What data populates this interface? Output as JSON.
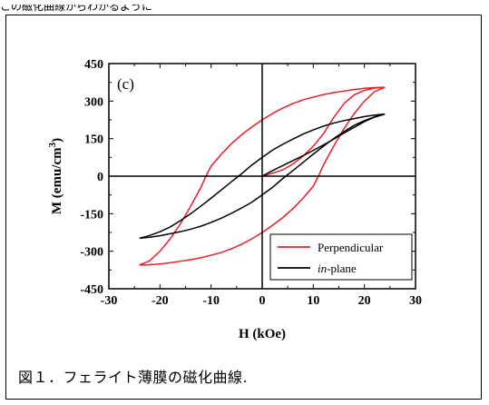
{
  "top_text": "この磁化曲線からわかるように",
  "caption": "図１．フェライト薄膜の磁化曲線.",
  "chart_data": {
    "type": "line",
    "panel_label": "(c)",
    "xlabel": "H (kOe)",
    "ylabel_main": "M (emu/cm",
    "ylabel_sup": "3",
    "ylabel_close": ")",
    "xlim": [
      -30,
      30
    ],
    "ylim": [
      -450,
      450
    ],
    "x_ticks": [
      -30,
      -20,
      -10,
      0,
      10,
      20,
      30
    ],
    "y_ticks": [
      -450,
      -300,
      -150,
      0,
      150,
      300,
      450
    ],
    "x_tick_labels": [
      "-30",
      "-20",
      "-10",
      "0",
      "10",
      "20",
      "30"
    ],
    "y_tick_labels": [
      "-450",
      "-300",
      "-150",
      "0",
      "150",
      "300",
      "450"
    ],
    "legend_position": "bottom-right",
    "series": [
      {
        "name": "Perpendicular",
        "color": "#ee1c25",
        "italic_prefix": "",
        "label_rest": "Perpendicular",
        "points": [
          [
            0,
            0
          ],
          [
            2,
            12
          ],
          [
            4,
            25
          ],
          [
            6,
            48
          ],
          [
            8,
            80
          ],
          [
            10,
            120
          ],
          [
            12,
            170
          ],
          [
            14,
            235
          ],
          [
            16,
            290
          ],
          [
            18,
            325
          ],
          [
            20,
            343
          ],
          [
            22,
            352
          ],
          [
            24,
            355
          ],
          [
            22,
            354
          ],
          [
            20,
            351
          ],
          [
            18,
            346
          ],
          [
            16,
            340
          ],
          [
            14,
            334
          ],
          [
            12,
            326
          ],
          [
            10,
            316
          ],
          [
            8,
            305
          ],
          [
            6,
            290
          ],
          [
            4,
            272
          ],
          [
            2,
            250
          ],
          [
            0,
            225
          ],
          [
            -2,
            197
          ],
          [
            -4,
            166
          ],
          [
            -6,
            130
          ],
          [
            -8,
            88
          ],
          [
            -10,
            40
          ],
          [
            -11,
            0
          ],
          [
            -12,
            -45
          ],
          [
            -14,
            -120
          ],
          [
            -16,
            -190
          ],
          [
            -18,
            -250
          ],
          [
            -20,
            -300
          ],
          [
            -22,
            -338
          ],
          [
            -24,
            -355
          ],
          [
            -22,
            -354
          ],
          [
            -20,
            -351
          ],
          [
            -18,
            -346
          ],
          [
            -16,
            -340
          ],
          [
            -14,
            -334
          ],
          [
            -12,
            -326
          ],
          [
            -10,
            -316
          ],
          [
            -8,
            -305
          ],
          [
            -6,
            -290
          ],
          [
            -4,
            -272
          ],
          [
            -2,
            -250
          ],
          [
            0,
            -225
          ],
          [
            2,
            -197
          ],
          [
            4,
            -166
          ],
          [
            6,
            -130
          ],
          [
            8,
            -88
          ],
          [
            10,
            -40
          ],
          [
            11,
            0
          ],
          [
            12,
            45
          ],
          [
            14,
            120
          ],
          [
            16,
            190
          ],
          [
            18,
            250
          ],
          [
            20,
            300
          ],
          [
            22,
            338
          ],
          [
            24,
            355
          ]
        ]
      },
      {
        "name": "in-plane",
        "color": "#000000",
        "italic_prefix": "in",
        "label_rest": "-plane",
        "points": [
          [
            0,
            0
          ],
          [
            2,
            22
          ],
          [
            4,
            42
          ],
          [
            6,
            62
          ],
          [
            8,
            82
          ],
          [
            10,
            103
          ],
          [
            12,
            125
          ],
          [
            14,
            148
          ],
          [
            16,
            172
          ],
          [
            18,
            195
          ],
          [
            20,
            218
          ],
          [
            22,
            236
          ],
          [
            24,
            248
          ],
          [
            22,
            244
          ],
          [
            20,
            238
          ],
          [
            18,
            230
          ],
          [
            16,
            222
          ],
          [
            14,
            212
          ],
          [
            12,
            200
          ],
          [
            10,
            185
          ],
          [
            8,
            168
          ],
          [
            6,
            148
          ],
          [
            4,
            127
          ],
          [
            2,
            104
          ],
          [
            0,
            75
          ],
          [
            -2,
            45
          ],
          [
            -4,
            10
          ],
          [
            -6,
            -22
          ],
          [
            -8,
            -55
          ],
          [
            -10,
            -88
          ],
          [
            -12,
            -120
          ],
          [
            -14,
            -150
          ],
          [
            -16,
            -178
          ],
          [
            -18,
            -203
          ],
          [
            -20,
            -222
          ],
          [
            -22,
            -237
          ],
          [
            -24,
            -248
          ],
          [
            -22,
            -244
          ],
          [
            -20,
            -238
          ],
          [
            -18,
            -230
          ],
          [
            -16,
            -222
          ],
          [
            -14,
            -212
          ],
          [
            -12,
            -200
          ],
          [
            -10,
            -185
          ],
          [
            -8,
            -168
          ],
          [
            -6,
            -148
          ],
          [
            -4,
            -127
          ],
          [
            -2,
            -104
          ],
          [
            0,
            -75
          ],
          [
            2,
            -45
          ],
          [
            4,
            -10
          ],
          [
            6,
            22
          ],
          [
            8,
            55
          ],
          [
            10,
            88
          ],
          [
            12,
            120
          ],
          [
            14,
            150
          ],
          [
            16,
            178
          ],
          [
            18,
            203
          ],
          [
            20,
            222
          ],
          [
            22,
            237
          ],
          [
            24,
            248
          ]
        ]
      }
    ]
  }
}
